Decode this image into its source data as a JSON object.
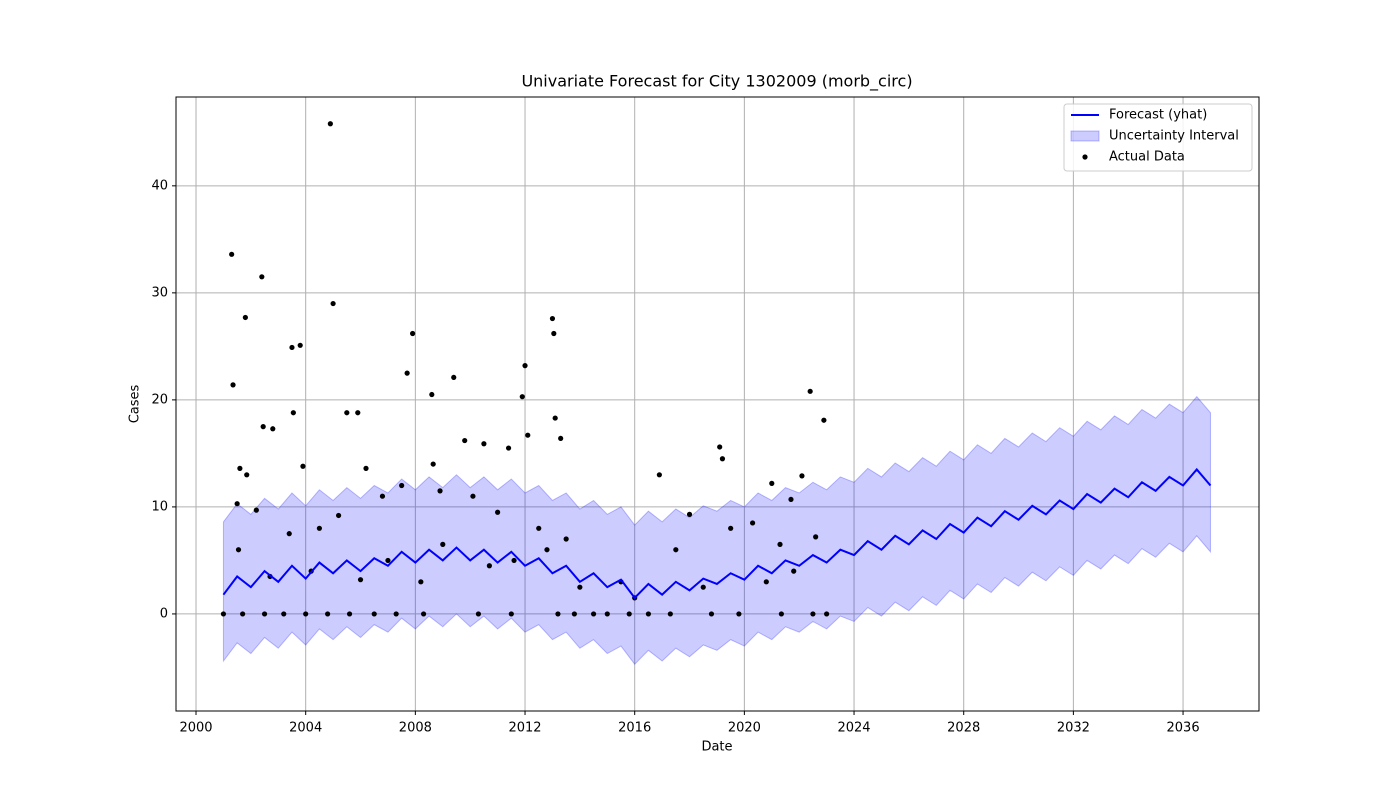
{
  "chart_data": {
    "type": "line",
    "title": "Univariate Forecast for City 1302009 (morb_circ)",
    "xlabel": "Date",
    "ylabel": "Cases",
    "x": [
      2001.0,
      2001.5,
      2002.0,
      2002.5,
      2003.0,
      2003.5,
      2004.0,
      2004.5,
      2005.0,
      2005.5,
      2006.0,
      2006.5,
      2007.0,
      2007.5,
      2008.0,
      2008.5,
      2009.0,
      2009.5,
      2010.0,
      2010.5,
      2011.0,
      2011.5,
      2012.0,
      2012.5,
      2013.0,
      2013.5,
      2014.0,
      2014.5,
      2015.0,
      2015.5,
      2016.0,
      2016.5,
      2017.0,
      2017.5,
      2018.0,
      2018.5,
      2019.0,
      2019.5,
      2020.0,
      2020.5,
      2021.0,
      2021.5,
      2022.0,
      2022.5,
      2023.0,
      2023.5,
      2024.0,
      2024.5,
      2025.0,
      2025.5,
      2026.0,
      2026.5,
      2027.0,
      2027.5,
      2028.0,
      2028.5,
      2029.0,
      2029.5,
      2030.0,
      2030.5,
      2031.0,
      2031.5,
      2032.0,
      2032.5,
      2033.0,
      2033.5,
      2034.0,
      2034.5,
      2035.0,
      2035.5,
      2036.0,
      2036.5,
      2037.0
    ],
    "series": [
      {
        "name": "Forecast (yhat)",
        "color": "#0000ff",
        "values": [
          1.8,
          3.5,
          2.5,
          4.0,
          3.0,
          4.5,
          3.3,
          4.8,
          3.8,
          5.0,
          4.0,
          5.2,
          4.5,
          5.8,
          4.8,
          6.0,
          5.0,
          6.2,
          5.0,
          6.0,
          4.8,
          5.8,
          4.5,
          5.2,
          3.8,
          4.5,
          3.0,
          3.8,
          2.5,
          3.2,
          1.5,
          2.8,
          1.8,
          3.0,
          2.2,
          3.3,
          2.8,
          3.8,
          3.2,
          4.5,
          3.8,
          5.0,
          4.5,
          5.5,
          4.8,
          6.0,
          5.5,
          6.8,
          6.0,
          7.3,
          6.5,
          7.8,
          7.0,
          8.4,
          7.6,
          9.0,
          8.2,
          9.6,
          8.8,
          10.1,
          9.3,
          10.6,
          9.8,
          11.2,
          10.4,
          11.7,
          10.9,
          12.3,
          11.5,
          12.8,
          12.0,
          13.5,
          12.0
        ]
      }
    ],
    "band": {
      "name": "Uncertainty Interval",
      "color": "#0000ff",
      "upper": [
        8.6,
        10.3,
        9.3,
        10.8,
        9.8,
        11.3,
        10.1,
        11.6,
        10.6,
        11.8,
        10.8,
        12.0,
        11.3,
        12.6,
        11.6,
        12.8,
        11.8,
        13.0,
        11.8,
        12.8,
        11.6,
        12.6,
        11.3,
        12.0,
        10.6,
        11.3,
        9.8,
        10.6,
        9.3,
        10.0,
        8.3,
        9.6,
        8.6,
        9.8,
        9.0,
        10.1,
        9.6,
        10.6,
        10.0,
        11.3,
        10.6,
        11.8,
        11.3,
        12.3,
        11.6,
        12.8,
        12.3,
        13.6,
        12.8,
        14.1,
        13.3,
        14.6,
        13.8,
        15.2,
        14.4,
        15.8,
        15.0,
        16.4,
        15.6,
        16.9,
        16.1,
        17.4,
        16.6,
        18.0,
        17.2,
        18.5,
        17.7,
        19.1,
        18.3,
        19.6,
        18.8,
        20.3,
        18.8
      ],
      "lower": [
        -4.4,
        -2.7,
        -3.7,
        -2.2,
        -3.2,
        -1.7,
        -2.9,
        -1.4,
        -2.4,
        -1.2,
        -2.2,
        -1.0,
        -1.7,
        -0.4,
        -1.4,
        -0.2,
        -1.2,
        0.0,
        -1.2,
        -0.2,
        -1.4,
        -0.4,
        -1.7,
        -1.0,
        -2.4,
        -1.7,
        -3.2,
        -2.4,
        -3.7,
        -3.0,
        -4.7,
        -3.4,
        -4.4,
        -3.2,
        -4.0,
        -2.9,
        -3.4,
        -2.4,
        -3.0,
        -1.7,
        -2.4,
        -1.2,
        -1.7,
        -0.7,
        -1.4,
        -0.2,
        -0.7,
        0.6,
        -0.2,
        1.1,
        0.3,
        1.6,
        0.8,
        2.2,
        1.4,
        2.8,
        2.0,
        3.4,
        2.6,
        3.9,
        3.1,
        4.4,
        3.6,
        5.0,
        4.2,
        5.5,
        4.7,
        6.1,
        5.3,
        6.6,
        5.8,
        7.3,
        5.8
      ]
    },
    "scatter": {
      "name": "Actual Data",
      "color": "#000000",
      "x": [
        2001.3,
        2001.35,
        2001.8,
        2002.4,
        2003.5,
        2003.8,
        2004.9,
        2005.0,
        2007.9,
        2007.7,
        2009.4,
        2008.6,
        2012.0,
        2011.9,
        2013.0,
        2013.05,
        2022.4,
        2022.9,
        2005.5,
        2005.9,
        2003.55,
        2002.45,
        2002.8,
        2001.6,
        2001.85,
        2003.9,
        2006.2,
        2008.65,
        2009.8,
        2010.5,
        2011.4,
        2012.1,
        2013.3,
        2013.1,
        2019.1,
        2019.2,
        2016.9,
        2021.0,
        2022.1,
        2021.7,
        2001.5,
        2002.2,
        2004.5,
        2005.2,
        2006.8,
        2007.5,
        2008.9,
        2010.1,
        2011.0,
        2012.5,
        2013.5,
        2015.5,
        2017.5,
        2018.0,
        2019.5,
        2020.3,
        2021.3,
        2022.6,
        2001.55,
        2002.7,
        2003.4,
        2004.2,
        2006.0,
        2007.0,
        2008.2,
        2009.0,
        2010.7,
        2011.6,
        2012.8,
        2014.0,
        2016.0,
        2018.5,
        2020.8,
        2021.8,
        2001.0,
        2001.7,
        2002.5,
        2003.2,
        2004.0,
        2004.8,
        2005.6,
        2006.5,
        2007.3,
        2008.3,
        2010.3,
        2011.5,
        2013.2,
        2013.8,
        2014.5,
        2015.0,
        2015.8,
        2016.5,
        2017.3,
        2018.8,
        2019.8,
        2021.35,
        2022.5,
        2023.0
      ],
      "values": [
        33.6,
        21.4,
        27.7,
        31.5,
        24.9,
        25.1,
        45.8,
        29.0,
        26.2,
        22.5,
        22.1,
        20.5,
        23.2,
        20.3,
        27.6,
        26.2,
        20.8,
        18.1,
        18.8,
        18.8,
        18.8,
        17.5,
        17.3,
        13.6,
        13.0,
        13.8,
        13.6,
        14.0,
        16.2,
        15.9,
        15.5,
        16.7,
        16.4,
        18.3,
        15.6,
        14.5,
        13.0,
        12.2,
        12.9,
        10.7,
        10.3,
        9.7,
        8.0,
        9.2,
        11.0,
        12.0,
        11.5,
        11.0,
        9.5,
        8.0,
        7.0,
        3.0,
        6.0,
        9.3,
        8.0,
        8.5,
        6.5,
        7.2,
        6.0,
        3.5,
        7.5,
        4.0,
        3.2,
        5.0,
        3.0,
        6.5,
        4.5,
        5.0,
        6.0,
        2.5,
        1.5,
        2.5,
        3.0,
        4.0,
        0,
        0,
        0,
        0,
        0,
        0,
        0,
        0,
        0,
        0,
        0,
        0,
        0,
        0,
        0,
        0,
        0,
        0,
        0,
        0,
        0,
        0,
        0,
        0
      ]
    },
    "xlim": [
      1999.27,
      2038.77
    ],
    "ylim": [
      -9.07,
      48.3
    ],
    "xticks": [
      2000,
      2004,
      2008,
      2012,
      2016,
      2020,
      2024,
      2028,
      2032,
      2036
    ],
    "yticks": [
      0,
      10,
      20,
      30,
      40
    ],
    "grid": true,
    "legend": "upper right"
  }
}
